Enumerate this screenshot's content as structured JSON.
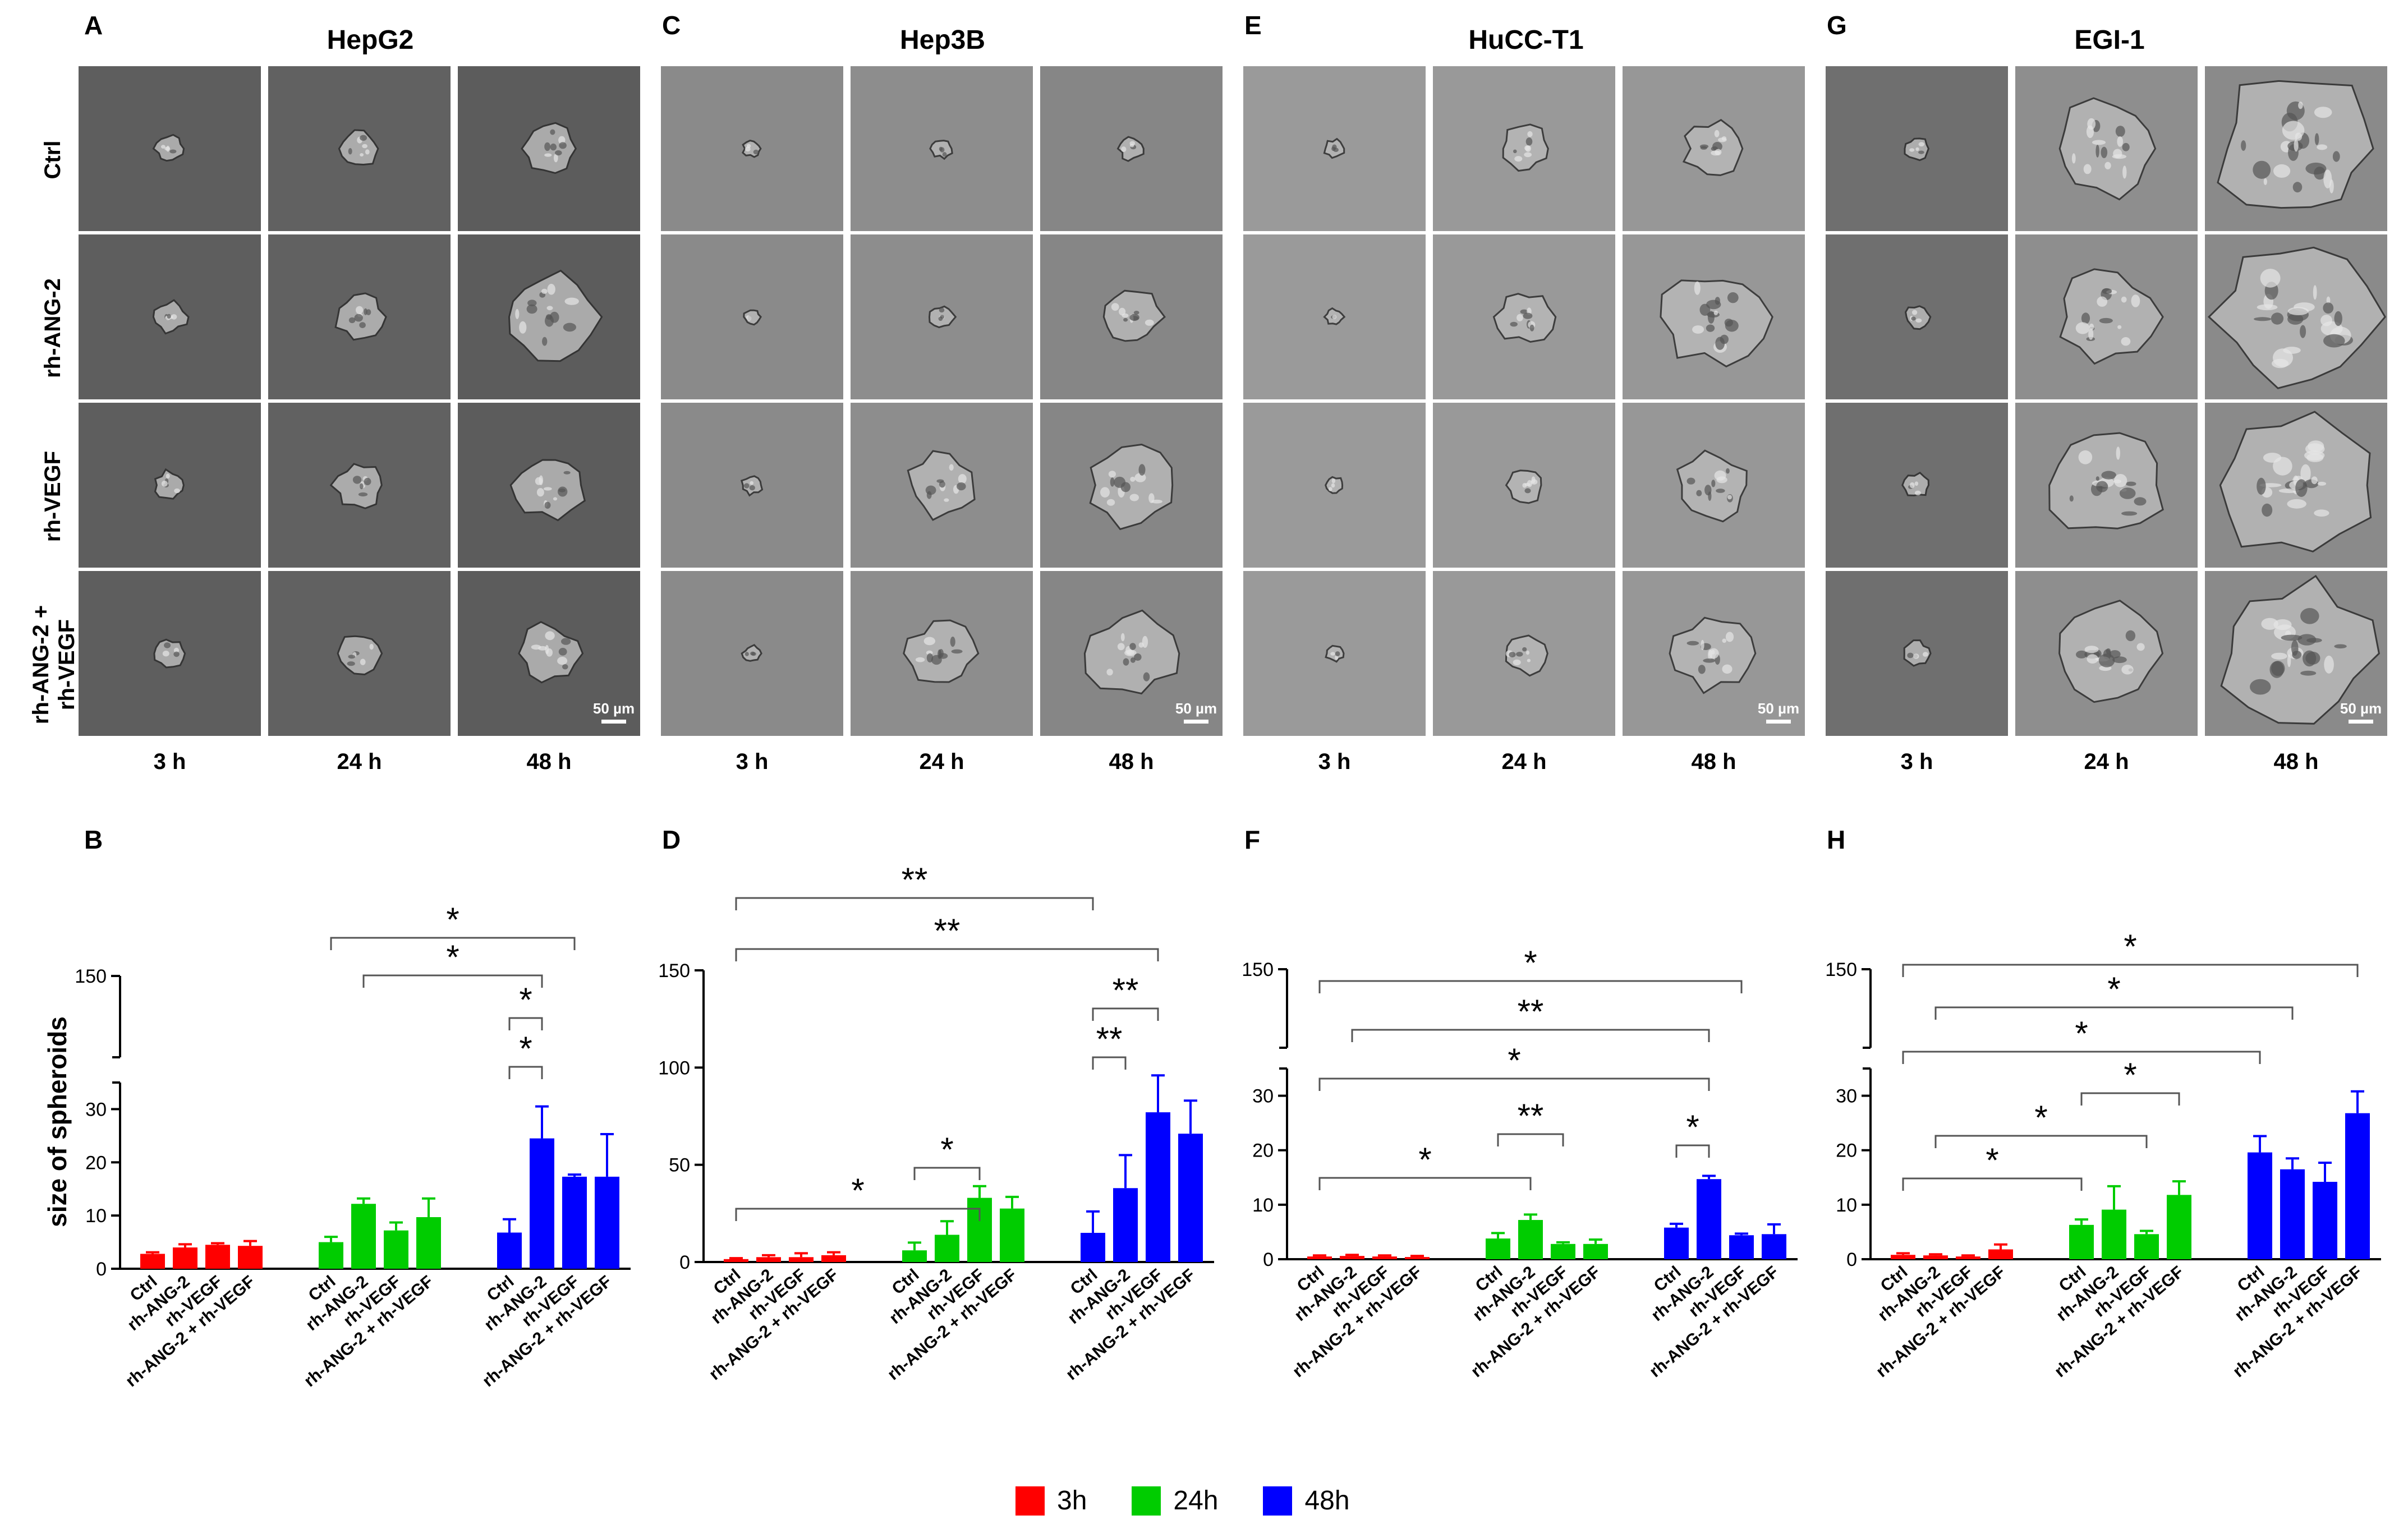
{
  "panel_letters": {
    "A": "A",
    "B": "B",
    "C": "C",
    "D": "D",
    "E": "E",
    "F": "F",
    "G": "G",
    "H": "H"
  },
  "cell_lines": [
    "HepG2",
    "Hep3B",
    "HuCC-T1",
    "EGI-1"
  ],
  "row_labels": [
    "Ctrl",
    "rh-ANG-2",
    "rh-VEGF",
    "rh-ANG-2 +\nrh-VEGF"
  ],
  "time_labels": [
    "3 h",
    "24 h",
    "48 h"
  ],
  "scale_bar": "50 µm",
  "ylabel": "size of spheroids",
  "legend": [
    {
      "label": "3h",
      "color": "#ff0000"
    },
    {
      "label": "24h",
      "color": "#00cc00"
    },
    {
      "label": "48h",
      "color": "#0000ff"
    }
  ],
  "chart_data": [
    {
      "panel": "B",
      "type": "bar",
      "axis": "broken",
      "categories": [
        "Ctrl",
        "rh-ANG-2",
        "rh-VEGF",
        "rh-ANG-2 + rh-VEGF"
      ],
      "yticks_lower": [
        0,
        10,
        20,
        30
      ],
      "yticks_upper": [
        150
      ],
      "series": [
        {
          "name": "3h",
          "values": [
            2.8,
            4.0,
            4.5,
            4.3
          ],
          "errors": [
            0.3,
            0.6,
            0.3,
            0.9
          ]
        },
        {
          "name": "24h",
          "values": [
            5.0,
            12.2,
            7.2,
            9.7
          ],
          "errors": [
            1.0,
            1.0,
            1.5,
            3.5
          ]
        },
        {
          "name": "48h",
          "values": [
            6.8,
            24.5,
            17.3,
            17.3
          ],
          "errors": [
            2.5,
            6.0,
            0.4,
            8.0
          ]
        }
      ],
      "significance": [
        {
          "from": [
            1,
            0
          ],
          "to": [
            2,
            2
          ],
          "label": "*"
        },
        {
          "from": [
            1,
            1
          ],
          "to": [
            2,
            1
          ],
          "label": "*"
        },
        {
          "from": [
            2,
            0
          ],
          "to": [
            2,
            1
          ],
          "label": "*"
        },
        {
          "from": [
            2,
            0
          ],
          "to": [
            2,
            1
          ],
          "label": "*"
        }
      ]
    },
    {
      "panel": "D",
      "type": "bar",
      "axis": "linear",
      "categories": [
        "Ctrl",
        "rh-ANG-2",
        "rh-VEGF",
        "rh-ANG-2 + rh-VEGF"
      ],
      "yticks": [
        0,
        50,
        100,
        150
      ],
      "series": [
        {
          "name": "3h",
          "values": [
            1.5,
            2.5,
            2.5,
            3.5
          ],
          "errors": [
            0.5,
            1.0,
            2.0,
            1.5
          ]
        },
        {
          "name": "24h",
          "values": [
            6.0,
            14.0,
            33.0,
            27.5
          ],
          "errors": [
            4.0,
            7.0,
            6.0,
            6.0
          ]
        },
        {
          "name": "48h",
          "values": [
            15.0,
            38.0,
            77.0,
            66.0
          ],
          "errors": [
            11.0,
            17.0,
            19.0,
            17.0
          ]
        }
      ],
      "significance": [
        {
          "from": [
            0,
            0
          ],
          "to": [
            2,
            0
          ],
          "label": "**"
        },
        {
          "from": [
            0,
            0
          ],
          "to": [
            2,
            2
          ],
          "label": "**"
        },
        {
          "from": [
            0,
            0
          ],
          "to": [
            1,
            2
          ],
          "label": "*"
        },
        {
          "from": [
            1,
            0
          ],
          "to": [
            1,
            2
          ],
          "label": "*"
        },
        {
          "from": [
            2,
            0
          ],
          "to": [
            2,
            2
          ],
          "label": "**"
        },
        {
          "from": [
            2,
            0
          ],
          "to": [
            2,
            1
          ],
          "label": "**"
        }
      ]
    },
    {
      "panel": "F",
      "type": "bar",
      "axis": "broken",
      "categories": [
        "Ctrl",
        "rh-ANG-2",
        "rh-VEGF",
        "rh-ANG-2 + rh-VEGF"
      ],
      "yticks_lower": [
        0,
        10,
        20,
        30
      ],
      "yticks_upper": [
        150
      ],
      "series": [
        {
          "name": "3h",
          "values": [
            0.5,
            0.6,
            0.5,
            0.4
          ],
          "errors": [
            0.2,
            0.2,
            0.2,
            0.2
          ]
        },
        {
          "name": "24h",
          "values": [
            3.8,
            7.2,
            2.8,
            2.8
          ],
          "errors": [
            1.0,
            1.0,
            0.3,
            0.8
          ]
        },
        {
          "name": "48h",
          "values": [
            5.8,
            14.7,
            4.4,
            4.6
          ],
          "errors": [
            0.7,
            0.6,
            0.3,
            1.8
          ]
        }
      ],
      "significance": [
        {
          "from": [
            0,
            0
          ],
          "to": [
            2,
            2
          ],
          "label": "*"
        },
        {
          "from": [
            0,
            1
          ],
          "to": [
            2,
            1
          ],
          "label": "**"
        },
        {
          "from": [
            0,
            0
          ],
          "to": [
            2,
            1
          ],
          "label": "*"
        },
        {
          "from": [
            1,
            0
          ],
          "to": [
            1,
            2
          ],
          "label": "**"
        },
        {
          "from": [
            0,
            0
          ],
          "to": [
            1,
            1
          ],
          "label": "*"
        },
        {
          "from": [
            2,
            0
          ],
          "to": [
            2,
            1
          ],
          "label": "*"
        }
      ]
    },
    {
      "panel": "H",
      "type": "bar",
      "axis": "broken",
      "categories": [
        "Ctrl",
        "rh-ANG-2",
        "rh-VEGF",
        "rh-ANG-2 + rh-VEGF"
      ],
      "yticks_lower": [
        0,
        10,
        20,
        30
      ],
      "yticks_upper": [
        150
      ],
      "series": [
        {
          "name": "3h",
          "values": [
            0.8,
            0.7,
            0.5,
            1.8
          ],
          "errors": [
            0.3,
            0.2,
            0.2,
            0.9
          ]
        },
        {
          "name": "24h",
          "values": [
            6.3,
            9.1,
            4.6,
            11.8
          ],
          "errors": [
            1.0,
            4.3,
            0.6,
            2.5
          ]
        },
        {
          "name": "48h",
          "values": [
            19.6,
            16.5,
            14.2,
            26.8
          ],
          "errors": [
            3.0,
            2.0,
            3.5,
            4.0
          ]
        }
      ],
      "significance": [
        {
          "from": [
            0,
            0
          ],
          "to": [
            2,
            3
          ],
          "label": "*"
        },
        {
          "from": [
            0,
            1
          ],
          "to": [
            2,
            1
          ],
          "label": "*"
        },
        {
          "from": [
            0,
            0
          ],
          "to": [
            2,
            0
          ],
          "label": "*"
        },
        {
          "from": [
            1,
            0
          ],
          "to": [
            1,
            3
          ],
          "label": "*"
        },
        {
          "from": [
            0,
            1
          ],
          "to": [
            1,
            2
          ],
          "label": "*"
        },
        {
          "from": [
            0,
            0
          ],
          "to": [
            1,
            0
          ],
          "label": "*"
        }
      ]
    }
  ]
}
